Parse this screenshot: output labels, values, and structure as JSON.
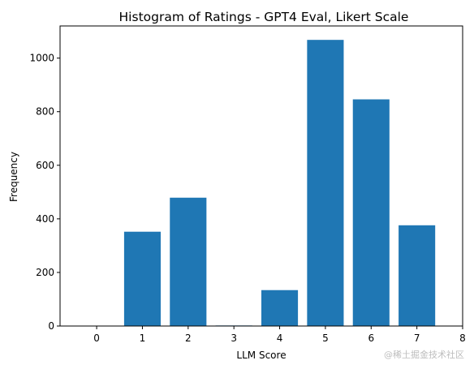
{
  "chart_data": {
    "type": "bar",
    "title": "Histogram of Ratings - GPT4 Eval, Likert Scale",
    "xlabel": "LLM Score",
    "ylabel": "Frequency",
    "categories": [
      0,
      1,
      2,
      3,
      4,
      5,
      6,
      7
    ],
    "values": [
      0,
      352,
      479,
      2,
      134,
      1068,
      846,
      376
    ],
    "xlim": [
      -0.8,
      8
    ],
    "ylim": [
      0,
      1120
    ],
    "xticks": [
      "0",
      "1",
      "2",
      "3",
      "4",
      "5",
      "6",
      "7",
      "8"
    ],
    "yticks": [
      "0",
      "200",
      "400",
      "600",
      "800",
      "1000"
    ],
    "bar_color": "#1f77b4",
    "grid": false
  },
  "watermark": "@稀土掘金技术社区"
}
